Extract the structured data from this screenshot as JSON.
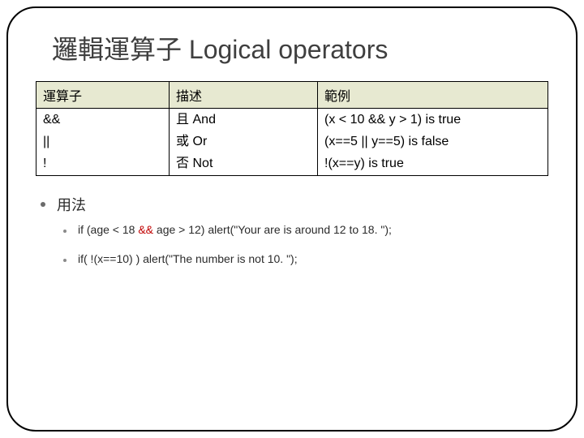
{
  "title": "邏輯運算子 Logical operators",
  "table": {
    "header_bg": "#e7e9d1",
    "columns": [
      "運算子",
      "描述",
      "範例"
    ],
    "rows": [
      {
        "op": "&&",
        "desc": "且 And",
        "ex": "(x < 10 && y > 1) is true"
      },
      {
        "op": "||",
        "desc": "或 Or",
        "ex": "(x==5 || y==5) is false"
      },
      {
        "op": "!",
        "desc": "否 Not",
        "ex": "!(x==y) is true"
      }
    ]
  },
  "usage": {
    "heading": "用法",
    "items": [
      {
        "pre": "if (age < 18 ",
        "hl": "&&",
        "post": " age  > 12)  alert(\"Your are is around 12 to 18. \");",
        "hl_color": "#c00000"
      },
      {
        "pre": "if( !(x==10) ) alert(\"The  number is not 10. \");",
        "hl": "",
        "post": "",
        "hl_color": "#c00000"
      }
    ]
  },
  "colors": {
    "title": "#3f3f3f",
    "border": "#000000",
    "text": "#2b2b2b",
    "bullet": "#6b6b6b"
  }
}
